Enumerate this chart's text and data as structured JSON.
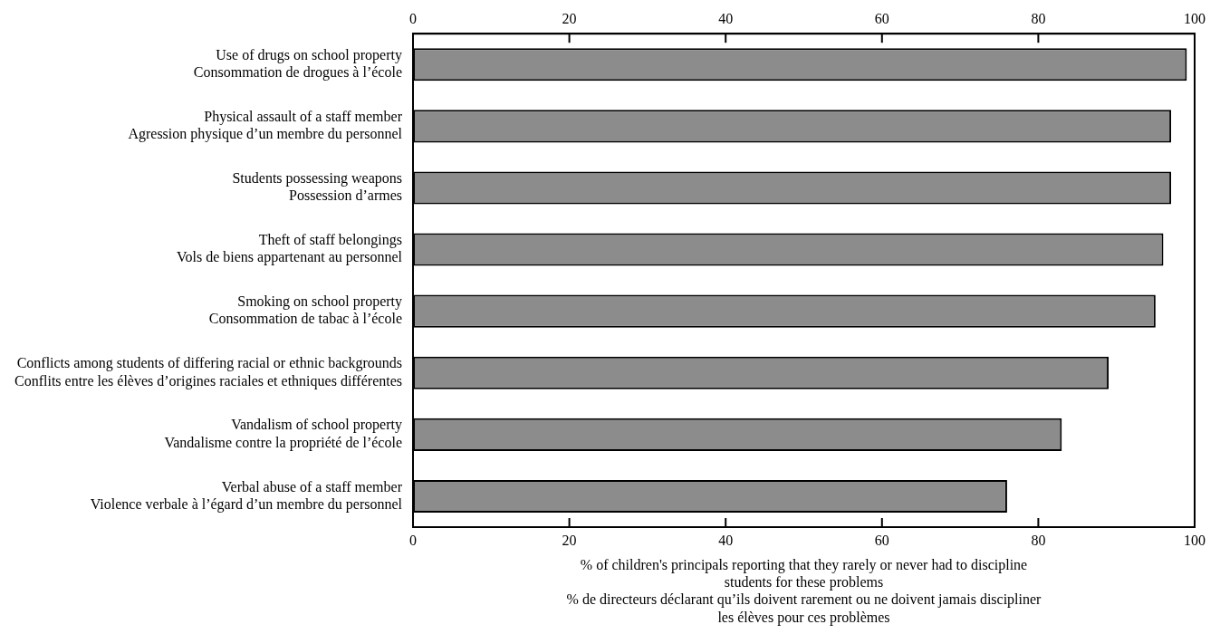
{
  "chart_data": {
    "type": "bar",
    "orientation": "horizontal",
    "categories": [
      "Use of drugs on school property\nConsommation de drogues à l’école",
      "Physical assault of a staff member\nAgression physique d’un membre du personnel",
      "Students possessing weapons\nPossession d’armes",
      "Theft of staff belongings\nVols de biens appartenant au personnel",
      "Smoking on school property\nConsommation de tabac à l’école",
      "Conflicts among students of differing racial or ethnic backgrounds\nConflits entre les élèves d’origines raciales et ethniques différentes",
      "Vandalism of school property\nVandalisme contre la propriété de l’école",
      "Verbal abuse of a staff member\nViolence verbale à l’égard d’un membre du personnel"
    ],
    "values": [
      99,
      97,
      97,
      96,
      95,
      89,
      83,
      76
    ],
    "color": "#8c8c8c",
    "xlim": [
      0,
      100
    ],
    "xticks": [
      0,
      20,
      40,
      60,
      80,
      100
    ],
    "x2lim": [
      0,
      100
    ],
    "x2ticks": [
      0,
      20,
      40,
      60,
      80,
      100
    ],
    "xlabel": "% of children's principals reporting that they rarely or never had to discipline\nstudents for these problems\n% de directeurs déclarant qu’ils doivent rarement ou ne doivent jamais discipliner\nles élèves pour ces problèmes",
    "grid": false,
    "legend": false
  }
}
